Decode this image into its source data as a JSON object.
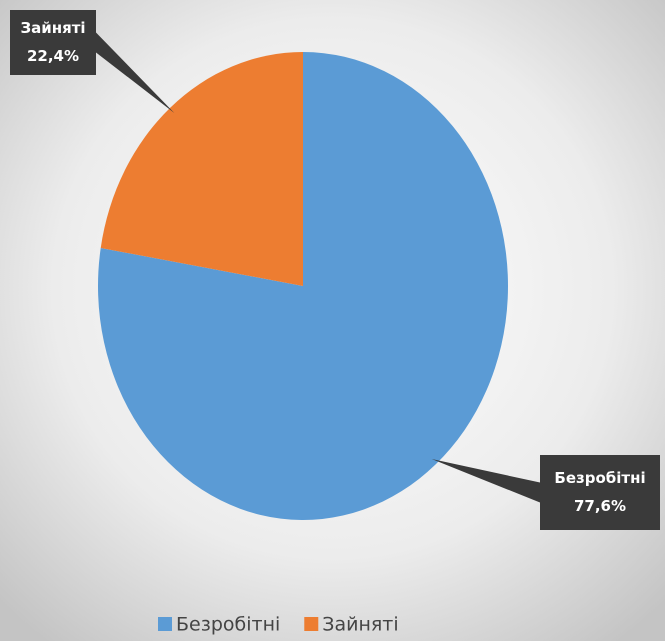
{
  "chart_data": {
    "type": "pie",
    "categories": [
      "Безробітні",
      "Зайняті"
    ],
    "values": [
      77.6,
      22.4
    ],
    "value_labels": [
      "77,6%",
      "22,4%"
    ],
    "colors": [
      "#5b9bd5",
      "#ed7d31"
    ],
    "legend": "bottom"
  }
}
